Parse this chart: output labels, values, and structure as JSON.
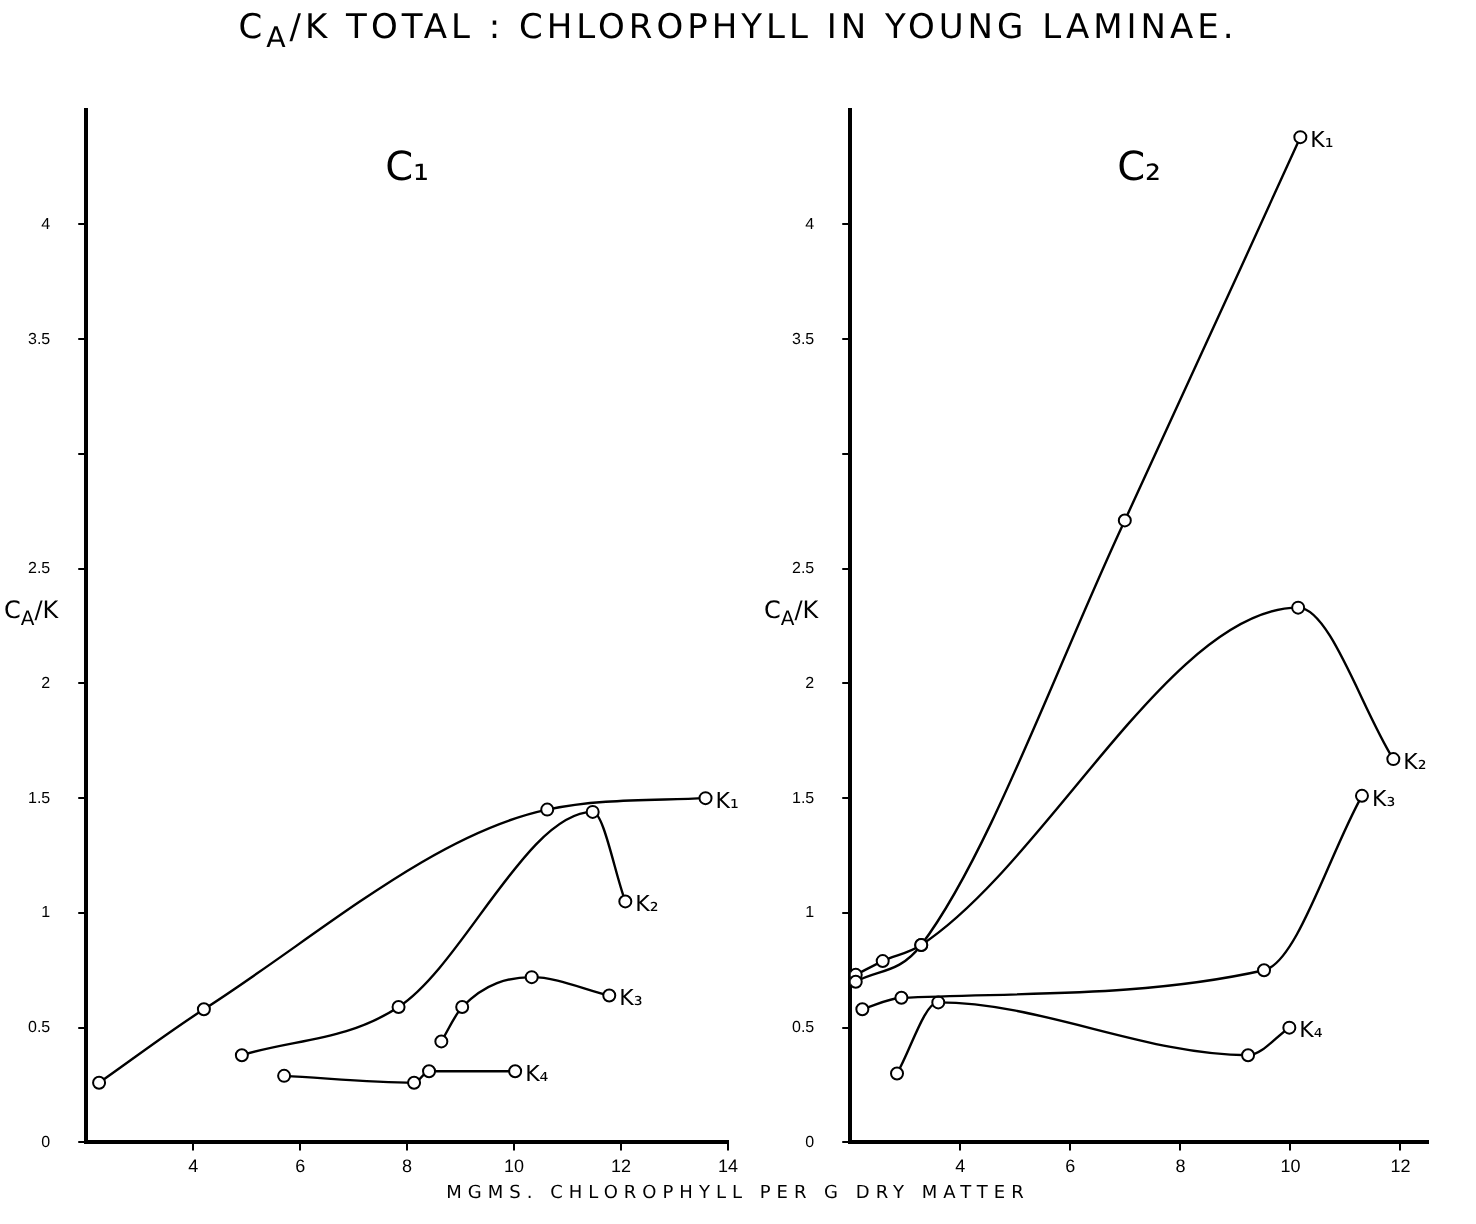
{
  "chart_data": [
    {
      "type": "line",
      "title": "C$_{A}$/K TOTAL : CHLOROPHYLL IN YOUNG LAMINAE.",
      "subtitle": "C₁",
      "xlabel": "MGMS. CHLOROPHYLL PER G DRY MATTER",
      "ylabel": "C$_{A}$/K",
      "xlim": [
        2,
        14
      ],
      "xticks": [
        4,
        6,
        8,
        10,
        12,
        14
      ],
      "ylim": [
        0,
        4.5
      ],
      "yticks": [
        0,
        0.5,
        1,
        1.5,
        2,
        2.5,
        {
          "value": 3,
          "label": null
        },
        3.5,
        4
      ],
      "grid": false,
      "legend": false,
      "marker": "circle",
      "line_style": "solid",
      "series": [
        {
          "name": "K₁",
          "color": "#000000",
          "x": [
            2.24,
            4.2,
            10.62,
            13.58
          ],
          "values": [
            0.26,
            0.58,
            1.45,
            1.5
          ]
        },
        {
          "name": "K₂",
          "color": "#000000",
          "x": [
            4.91,
            7.84,
            11.47,
            12.08
          ],
          "values": [
            0.38,
            0.59,
            1.44,
            1.05
          ]
        },
        {
          "name": "K₃",
          "color": "#000000",
          "x": [
            8.64,
            9.03,
            10.33,
            11.78
          ],
          "values": [
            0.44,
            0.59,
            0.72,
            0.64
          ]
        },
        {
          "name": "K₄",
          "color": "#000000",
          "x": [
            5.7,
            8.13,
            8.41,
            10.02
          ],
          "values": [
            0.29,
            0.26,
            0.31,
            0.31
          ]
        }
      ]
    },
    {
      "type": "line",
      "subtitle": "C₂",
      "ylabel": "C$_{A}$/K",
      "xlim": [
        2,
        12.5
      ],
      "xticks": [
        4,
        6,
        8,
        10,
        12
      ],
      "ylim": [
        0,
        4.5
      ],
      "yticks": [
        0,
        0.5,
        1,
        1.5,
        2,
        2.5,
        {
          "value": 3,
          "label": null
        },
        3.5,
        4
      ],
      "grid": false,
      "legend": false,
      "marker": "circle",
      "line_style": "solid",
      "series": [
        {
          "name": "K₁",
          "color": "#000000",
          "x": [
            2.1,
            3.29,
            6.99,
            10.18
          ],
          "values": [
            0.7,
            0.86,
            2.71,
            4.38
          ]
        },
        {
          "name": "K₂",
          "color": "#000000",
          "x": [
            2.1,
            2.59,
            3.29,
            10.14,
            11.87
          ],
          "values": [
            0.73,
            0.79,
            0.86,
            2.33,
            1.67
          ]
        },
        {
          "name": "K₃",
          "color": "#000000",
          "x": [
            2.22,
            2.93,
            9.52,
            11.3
          ],
          "values": [
            0.58,
            0.63,
            0.75,
            1.51
          ]
        },
        {
          "name": "K₄",
          "color": "#000000",
          "x": [
            2.85,
            3.6,
            9.23,
            9.98
          ],
          "values": [
            0.3,
            0.61,
            0.38,
            0.5
          ]
        }
      ]
    }
  ]
}
